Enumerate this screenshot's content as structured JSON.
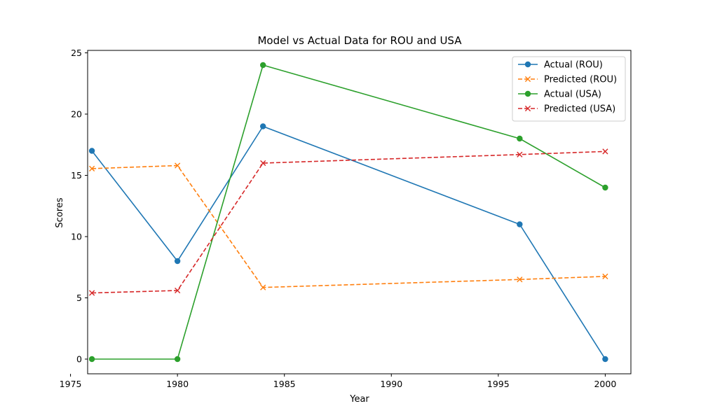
{
  "chart_data": {
    "type": "line",
    "title": "Model vs Actual Data for ROU and USA",
    "xlabel": "Year",
    "ylabel": "Scores",
    "x": [
      1976,
      1980,
      1984,
      1996,
      2000
    ],
    "xlim": [
      1975.8,
      2001.2
    ],
    "ylim": [
      -1.2,
      25.2
    ],
    "xticks": [
      1975,
      1980,
      1985,
      1990,
      1995,
      2000
    ],
    "yticks": [
      0,
      5,
      10,
      15,
      20,
      25
    ],
    "grid": false,
    "legend_position": "top-right",
    "series": [
      {
        "name": "Actual (ROU)",
        "values": [
          17,
          8,
          19,
          11,
          0
        ],
        "color": "#1f77b4",
        "style": "solid",
        "marker": "circle"
      },
      {
        "name": "Predicted (ROU)",
        "values": [
          15.55,
          15.8,
          5.85,
          6.5,
          6.75
        ],
        "color": "#ff7f0e",
        "style": "dashed",
        "marker": "x"
      },
      {
        "name": "Actual (USA)",
        "values": [
          0,
          0,
          24,
          18,
          14
        ],
        "color": "#2ca02c",
        "style": "solid",
        "marker": "circle"
      },
      {
        "name": "Predicted (USA)",
        "values": [
          5.4,
          5.6,
          16.0,
          16.7,
          16.95
        ],
        "color": "#d62728",
        "style": "dashed",
        "marker": "x"
      }
    ]
  }
}
